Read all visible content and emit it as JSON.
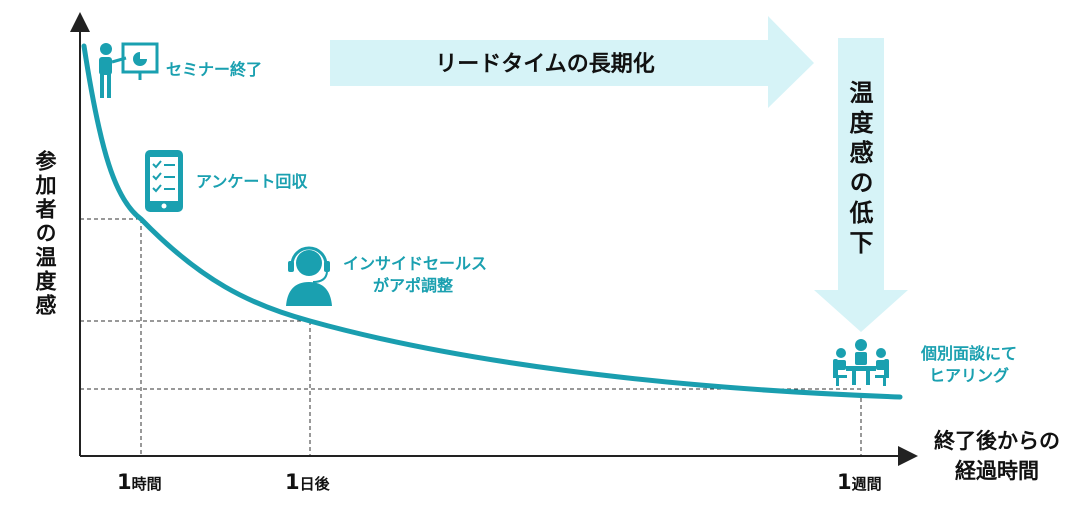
{
  "y_axis_label": "参加者の温度感",
  "x_axis_label": "終了後からの\n経過時間",
  "ticks": [
    {
      "num": "1",
      "unit": "時間"
    },
    {
      "num": "1",
      "unit": "日後"
    },
    {
      "num": "1",
      "unit": "週間"
    }
  ],
  "banner": {
    "text": "リードタイムの長期化"
  },
  "down_arrow": {
    "text": "温度感の低下"
  },
  "events": {
    "seminar": "セミナー終了",
    "survey": "アンケート回収",
    "inside_sales_1": "インサイドセールス",
    "inside_sales_2": "がアポ調整",
    "meeting_1": "個別面談にて",
    "meeting_2": "ヒアリング"
  },
  "colors": {
    "curve": "#1a9eaf",
    "arrow": "#d6f3f7",
    "icon": "#1aa0b0",
    "axis": "#222222"
  },
  "icons": [
    "presenter-icon",
    "tablet-checklist-icon",
    "headset-operator-icon",
    "meeting-table-icon"
  ]
}
